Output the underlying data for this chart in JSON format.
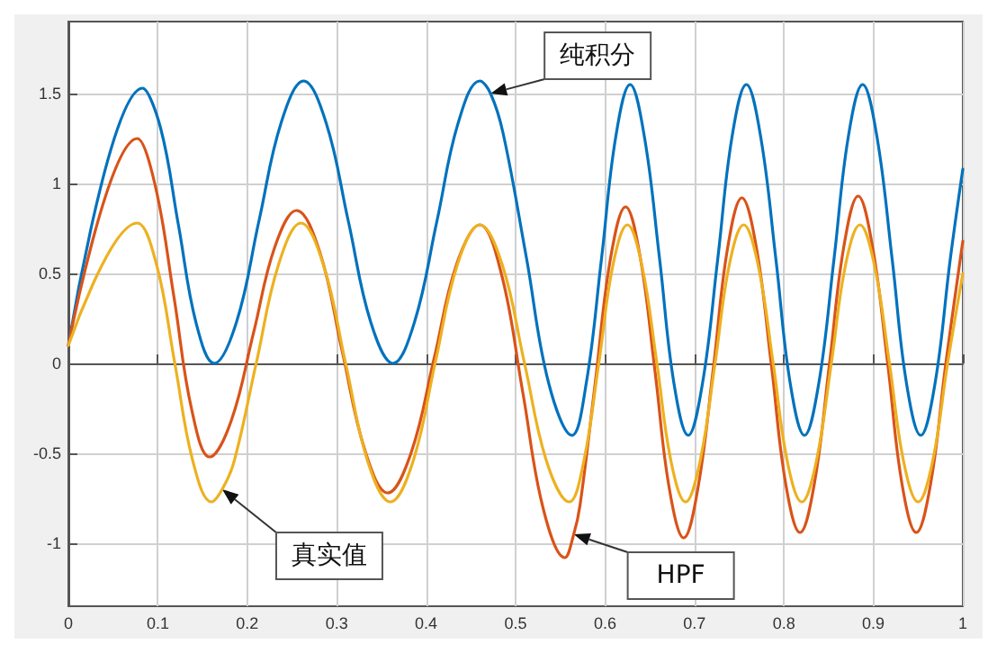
{
  "chart_data": {
    "type": "line",
    "xlim": [
      0,
      1
    ],
    "xticks": [
      0,
      0.1,
      0.2,
      0.3,
      0.4,
      0.5,
      0.6,
      0.7,
      0.8,
      0.9,
      1
    ],
    "ylim": [
      -1.35,
      1.9
    ],
    "yticks": [
      -1,
      -0.5,
      0,
      0.5,
      1,
      1.5
    ],
    "grid": true,
    "marker": "none",
    "line_style": "solid",
    "series": [
      {
        "color": "#0072bd",
        "x": [
          0,
          0.083,
          0.103,
          0.123,
          0.143,
          0.163,
          0.188,
          0.213,
          0.238,
          0.263,
          0.288,
          0.313,
          0.338,
          0.363,
          0.387,
          0.412,
          0.436,
          0.46,
          0.472,
          0.486,
          0.512,
          0.537,
          0.563,
          0.579,
          0.596,
          0.612,
          0.628,
          0.644,
          0.661,
          0.677,
          0.693,
          0.709,
          0.726,
          0.742,
          0.758,
          0.774,
          0.791,
          0.807,
          0.823,
          0.839,
          0.856,
          0.872,
          0.888,
          0.904,
          0.921,
          0.937,
          0.953,
          0.969,
          0.986,
          1
        ],
        "values": [
          0.1,
          1.53,
          1.31,
          0.77,
          0.22,
          0,
          0.23,
          0.79,
          1.34,
          1.57,
          1.34,
          0.79,
          0.23,
          0,
          0.23,
          0.79,
          1.34,
          1.57,
          1.5,
          1.28,
          0.59,
          -0.11,
          -0.4,
          -0.11,
          0.58,
          1.26,
          1.55,
          1.26,
          0.58,
          -0.11,
          -0.4,
          -0.11,
          0.58,
          1.26,
          1.55,
          1.26,
          0.58,
          -0.11,
          -0.4,
          -0.11,
          0.58,
          1.26,
          1.55,
          1.26,
          0.58,
          -0.11,
          -0.4,
          -0.11,
          0.58,
          1.08
        ]
      },
      {
        "color": "#d95319",
        "x": [
          0,
          0.077,
          0.097,
          0.118,
          0.138,
          0.158,
          0.182,
          0.207,
          0.231,
          0.255,
          0.281,
          0.306,
          0.332,
          0.357,
          0.383,
          0.409,
          0.434,
          0.46,
          0.484,
          0.508,
          0.531,
          0.555,
          0.565,
          0.572,
          0.589,
          0.606,
          0.623,
          0.639,
          0.656,
          0.672,
          0.688,
          0.704,
          0.721,
          0.737,
          0.753,
          0.769,
          0.786,
          0.802,
          0.818,
          0.834,
          0.851,
          0.867,
          0.883,
          0.899,
          0.916,
          0.932,
          0.948,
          0.964,
          0.981,
          1
        ],
        "values": [
          0.1,
          1.25,
          0.99,
          0.37,
          -0.26,
          -0.52,
          -0.32,
          0.17,
          0.65,
          0.85,
          0.62,
          0.07,
          -0.49,
          -0.72,
          -0.5,
          0.03,
          0.55,
          0.77,
          0.5,
          -0.16,
          -0.81,
          -1.08,
          -0.95,
          -0.79,
          -0.11,
          0.58,
          0.87,
          0.6,
          -0.05,
          -0.7,
          -0.97,
          -0.69,
          -0.03,
          0.64,
          0.92,
          0.65,
          -0.01,
          -0.67,
          -0.94,
          -0.67,
          0,
          0.65,
          0.93,
          0.65,
          0,
          -0.67,
          -0.94,
          -0.67,
          0,
          0.68
        ]
      },
      {
        "color": "#edb120",
        "x": [
          0,
          0.077,
          0.0985,
          0.119,
          0.1395,
          0.16,
          0.172,
          0.185,
          0.21,
          0.235,
          0.26,
          0.285,
          0.31,
          0.335,
          0.36,
          0.385,
          0.41,
          0.435,
          0.46,
          0.485,
          0.51,
          0.535,
          0.56,
          0.576,
          0.593,
          0.609,
          0.625,
          0.641,
          0.658,
          0.674,
          0.69,
          0.706,
          0.723,
          0.739,
          0.755,
          0.771,
          0.788,
          0.804,
          0.82,
          0.836,
          0.853,
          0.869,
          0.885,
          0.901,
          0.918,
          0.934,
          0.95,
          0.966,
          0.983,
          1
        ],
        "values": [
          0.1,
          0.78,
          0.55,
          0,
          -0.55,
          -0.77,
          -0.7,
          -0.55,
          0,
          0.55,
          0.78,
          0.55,
          0,
          -0.55,
          -0.77,
          -0.55,
          0,
          0.55,
          0.77,
          0.55,
          0,
          -0.55,
          -0.77,
          -0.55,
          0,
          0.55,
          0.77,
          0.55,
          0,
          -0.55,
          -0.77,
          -0.55,
          0,
          0.55,
          0.77,
          0.55,
          0,
          -0.55,
          -0.77,
          -0.55,
          0,
          0.55,
          0.77,
          0.55,
          0,
          -0.55,
          -0.77,
          -0.55,
          0,
          0.5
        ]
      }
    ],
    "annotations": [
      {
        "text": "纯积分",
        "x": 0.472,
        "y": 1.5
      },
      {
        "text": "真实值",
        "x": 0.172,
        "y": -0.7
      },
      {
        "text": "HPF",
        "x": 0.565,
        "y": -0.95
      }
    ]
  }
}
